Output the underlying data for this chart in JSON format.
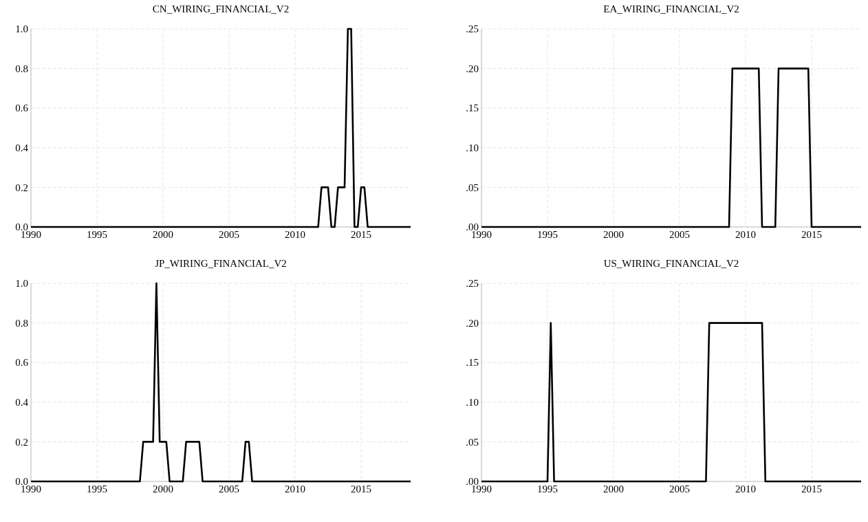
{
  "chart_data": [
    {
      "type": "line",
      "title": "CN_WIRING_FINANCIAL_V2",
      "xlim": [
        1990,
        2018.75
      ],
      "xticks": [
        1990,
        1995,
        2000,
        2005,
        2010,
        2015
      ],
      "ylim": [
        0,
        1
      ],
      "yticks": [
        {
          "value": 0,
          "label": "0.0"
        },
        {
          "value": 0.2,
          "label": "0.2"
        },
        {
          "value": 0.4,
          "label": "0.4"
        },
        {
          "value": 0.6,
          "label": "0.6"
        },
        {
          "value": 0.8,
          "label": "0.8"
        },
        {
          "value": 1,
          "label": "1.0"
        }
      ],
      "grid": true,
      "series": [
        {
          "color": "#000000",
          "x": [
            1990,
            2011.75,
            2012,
            2012.5,
            2012.75,
            2013,
            2013.25,
            2013.75,
            2014,
            2014.25,
            2014.5,
            2014.75,
            2015,
            2015.25,
            2015.5,
            2018.75
          ],
          "values": [
            0,
            0,
            0.2,
            0.2,
            0,
            0,
            0.2,
            0.2,
            1,
            1,
            0,
            0,
            0.2,
            0.2,
            0,
            0
          ]
        }
      ]
    },
    {
      "type": "line",
      "title": "EA_WIRING_FINANCIAL_V2",
      "xlim": [
        1990,
        2018.75
      ],
      "xticks": [
        1990,
        1995,
        2000,
        2005,
        2010,
        2015
      ],
      "ylim": [
        0,
        0.25
      ],
      "yticks": [
        {
          "value": 0,
          "label": ".00"
        },
        {
          "value": 0.05,
          "label": ".05"
        },
        {
          "value": 0.1,
          "label": ".10"
        },
        {
          "value": 0.15,
          "label": ".15"
        },
        {
          "value": 0.2,
          "label": ".20"
        },
        {
          "value": 0.25,
          "label": ".25"
        }
      ],
      "grid": true,
      "series": [
        {
          "color": "#000000",
          "x": [
            1990,
            2008.75,
            2009,
            2011,
            2011.25,
            2012.25,
            2012.5,
            2014.75,
            2015,
            2018.75
          ],
          "values": [
            0,
            0,
            0.2,
            0.2,
            0,
            0,
            0.2,
            0.2,
            0,
            0
          ]
        }
      ]
    },
    {
      "type": "line",
      "title": "JP_WIRING_FINANCIAL_V2",
      "xlim": [
        1990,
        2018.75
      ],
      "xticks": [
        1990,
        1995,
        2000,
        2005,
        2010,
        2015
      ],
      "ylim": [
        0,
        1
      ],
      "yticks": [
        {
          "value": 0,
          "label": "0.0"
        },
        {
          "value": 0.2,
          "label": "0.2"
        },
        {
          "value": 0.4,
          "label": "0.4"
        },
        {
          "value": 0.6,
          "label": "0.6"
        },
        {
          "value": 0.8,
          "label": "0.8"
        },
        {
          "value": 1,
          "label": "1.0"
        }
      ],
      "grid": true,
      "series": [
        {
          "color": "#000000",
          "x": [
            1990,
            1998.25,
            1998.5,
            1999.25,
            1999.5,
            1999.75,
            2000.25,
            2000.5,
            2001.5,
            2001.75,
            2002.75,
            2003,
            2006,
            2006.25,
            2006.5,
            2006.75,
            2018.75
          ],
          "values": [
            0,
            0,
            0.2,
            0.2,
            1,
            0.2,
            0.2,
            0,
            0,
            0.2,
            0.2,
            0,
            0,
            0.2,
            0.2,
            0,
            0
          ]
        }
      ]
    },
    {
      "type": "line",
      "title": "US_WIRING_FINANCIAL_V2",
      "xlim": [
        1990,
        2018.75
      ],
      "xticks": [
        1990,
        1995,
        2000,
        2005,
        2010,
        2015
      ],
      "ylim": [
        0,
        0.25
      ],
      "yticks": [
        {
          "value": 0,
          "label": ".00"
        },
        {
          "value": 0.05,
          "label": ".05"
        },
        {
          "value": 0.1,
          "label": ".10"
        },
        {
          "value": 0.15,
          "label": ".15"
        },
        {
          "value": 0.2,
          "label": ".20"
        },
        {
          "value": 0.25,
          "label": ".25"
        }
      ],
      "grid": true,
      "series": [
        {
          "color": "#000000",
          "x": [
            1990,
            1995,
            1995.25,
            1995.5,
            2007,
            2007.25,
            2011.25,
            2011.5,
            2018.75
          ],
          "values": [
            0,
            0,
            0.2,
            0,
            0,
            0.2,
            0.2,
            0,
            0
          ]
        }
      ]
    }
  ]
}
